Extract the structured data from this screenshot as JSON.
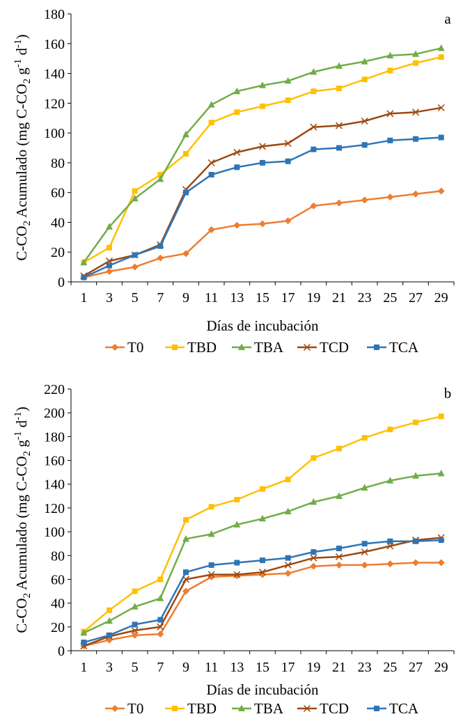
{
  "chart_data": [
    {
      "type": "line",
      "panel_label": "a",
      "title": "",
      "xlabel": "Días de incubación",
      "ylabel_parts": {
        "pre": "C-CO",
        "sub": "2",
        "mid": " Acumulado  (mg C-CO",
        "sub2": "2",
        "g": " g",
        "sup1": "-1",
        "d": " d",
        "sup2": "-1",
        "post": ")"
      },
      "x": [
        1,
        3,
        5,
        7,
        9,
        11,
        13,
        15,
        17,
        19,
        21,
        23,
        25,
        27,
        29
      ],
      "ylim": [
        0,
        180
      ],
      "yticks": [
        0,
        20,
        40,
        60,
        80,
        100,
        120,
        140,
        160,
        180
      ],
      "grid": false,
      "legend_position": "bottom",
      "series": [
        {
          "name": "T0",
          "color": "#ED7D31",
          "marker": "diamond",
          "values": [
            3,
            7,
            10,
            16,
            19,
            35,
            38,
            39,
            41,
            51,
            53,
            55,
            57,
            59,
            61
          ]
        },
        {
          "name": "TBD",
          "color": "#FFC000",
          "marker": "square",
          "values": [
            13,
            23,
            61,
            72,
            86,
            107,
            114,
            118,
            122,
            128,
            130,
            136,
            142,
            147,
            151
          ]
        },
        {
          "name": "TBA",
          "color": "#70AD47",
          "marker": "triangle",
          "values": [
            13,
            37,
            56,
            69,
            99,
            119,
            128,
            132,
            135,
            141,
            145,
            148,
            152,
            153,
            157
          ]
        },
        {
          "name": "TCD",
          "color": "#9E480E",
          "marker": "x",
          "values": [
            4,
            14,
            18,
            25,
            62,
            80,
            87,
            91,
            93,
            104,
            105,
            108,
            113,
            114,
            117
          ]
        },
        {
          "name": "TCA",
          "color": "#2E75B6",
          "marker": "square",
          "values": [
            3,
            11,
            18,
            24,
            60,
            72,
            77,
            80,
            81,
            89,
            90,
            92,
            95,
            96,
            97
          ]
        }
      ]
    },
    {
      "type": "line",
      "panel_label": "b",
      "title": "",
      "xlabel": "Días de incubación",
      "ylabel_parts": {
        "pre": "C-CO",
        "sub": "2",
        "mid": " Acumulado  (mg C-CO",
        "sub2": "2",
        "g": " g",
        "sup1": "-1",
        "d": " d",
        "sup2": "-1",
        "post": ")"
      },
      "x": [
        1,
        3,
        5,
        7,
        9,
        11,
        13,
        15,
        17,
        19,
        21,
        23,
        25,
        27,
        29
      ],
      "ylim": [
        0,
        220
      ],
      "yticks": [
        0,
        20,
        40,
        60,
        80,
        100,
        120,
        140,
        160,
        180,
        200,
        220
      ],
      "grid": false,
      "legend_position": "bottom",
      "series": [
        {
          "name": "T0",
          "color": "#ED7D31",
          "marker": "diamond",
          "values": [
            4,
            9,
            13,
            14,
            50,
            62,
            63,
            64,
            65,
            71,
            72,
            72,
            73,
            74,
            74
          ]
        },
        {
          "name": "TBD",
          "color": "#FFC000",
          "marker": "square",
          "values": [
            16,
            34,
            50,
            60,
            110,
            121,
            127,
            136,
            144,
            162,
            170,
            179,
            186,
            192,
            197
          ]
        },
        {
          "name": "TBA",
          "color": "#70AD47",
          "marker": "triangle",
          "values": [
            15,
            25,
            37,
            44,
            94,
            98,
            106,
            111,
            117,
            125,
            130,
            137,
            143,
            147,
            149
          ]
        },
        {
          "name": "TCD",
          "color": "#9E480E",
          "marker": "x",
          "values": [
            4,
            12,
            17,
            20,
            60,
            64,
            64,
            66,
            72,
            78,
            79,
            83,
            88,
            93,
            95
          ]
        },
        {
          "name": "TCA",
          "color": "#2E75B6",
          "marker": "square",
          "values": [
            7,
            13,
            22,
            26,
            66,
            72,
            74,
            76,
            78,
            83,
            86,
            90,
            92,
            92,
            93
          ]
        }
      ]
    }
  ]
}
